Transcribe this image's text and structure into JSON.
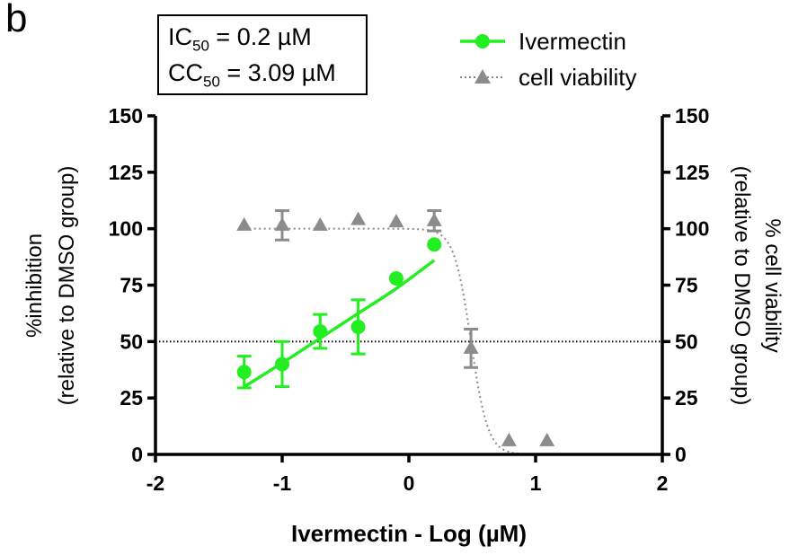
{
  "panel_label": "b",
  "stats": {
    "ic50_prefix": "IC",
    "ic50_sub": "50",
    "ic50_value": " = 0.2 µM",
    "cc50_prefix": "CC",
    "cc50_sub": "50",
    "cc50_value": " = 3.09 µM"
  },
  "chart_data": {
    "type": "scatter",
    "xlabel": "Ivermectin - Log (µM)",
    "ylabel_left": [
      "%inhibition",
      "(relative to DMSO group)"
    ],
    "ylabel_right": [
      "% cell viability",
      "(relative to DMSO group)"
    ],
    "xlim": [
      -2,
      2
    ],
    "ylim": [
      0,
      150
    ],
    "x_ticks": [
      -2,
      -1,
      0,
      1,
      2
    ],
    "x_tick_labels": [
      "-2",
      "-1",
      "0",
      "1",
      "2"
    ],
    "y_ticks": [
      0,
      25,
      50,
      75,
      100,
      125,
      150
    ],
    "y_tick_labels": [
      "0",
      "25",
      "50",
      "75",
      "100",
      "125",
      "150"
    ],
    "reference_line_y": 50,
    "grid": false,
    "legend_position": "top-right",
    "colors": {
      "ivermectin": "#22ee22",
      "viability": "#8c8c8c",
      "axis": "#000000"
    },
    "series": [
      {
        "name": "Ivermectin",
        "marker": "circle",
        "line": "solid",
        "points": [
          {
            "x": -1.3,
            "y": 36.5,
            "err": 7
          },
          {
            "x": -1.0,
            "y": 40,
            "err": 10
          },
          {
            "x": -0.7,
            "y": 54.5,
            "err": 7.5
          },
          {
            "x": -0.4,
            "y": 56.5,
            "err": 12
          },
          {
            "x": -0.1,
            "y": 78,
            "err": 0
          },
          {
            "x": 0.2,
            "y": 93,
            "err": 0
          }
        ],
        "fit": [
          [
            -1.3,
            30
          ],
          [
            -1.0,
            40.5
          ],
          [
            -0.7,
            51.5
          ],
          [
            -0.4,
            62.5
          ],
          [
            -0.1,
            73.5
          ],
          [
            0.2,
            86
          ]
        ]
      },
      {
        "name": "cell viability",
        "marker": "triangle",
        "line": "dotted",
        "points": [
          {
            "x": -1.3,
            "y": 101.5,
            "err": 0
          },
          {
            "x": -1.0,
            "y": 101.5,
            "err": 6.5
          },
          {
            "x": -0.7,
            "y": 101.5,
            "err": 0
          },
          {
            "x": -0.4,
            "y": 104,
            "err": 0
          },
          {
            "x": -0.1,
            "y": 103,
            "err": 0
          },
          {
            "x": 0.2,
            "y": 103.5,
            "err": 4.5
          },
          {
            "x": 0.49,
            "y": 47,
            "err": 8.5
          },
          {
            "x": 0.79,
            "y": 6,
            "err": 0
          },
          {
            "x": 1.09,
            "y": 6,
            "err": 0
          }
        ],
        "fit": {
          "top": 100,
          "bottom": 0,
          "logCC50": 0.49,
          "hill": 6.5,
          "x_start": -1.3,
          "x_end": 0.95
        }
      }
    ]
  }
}
